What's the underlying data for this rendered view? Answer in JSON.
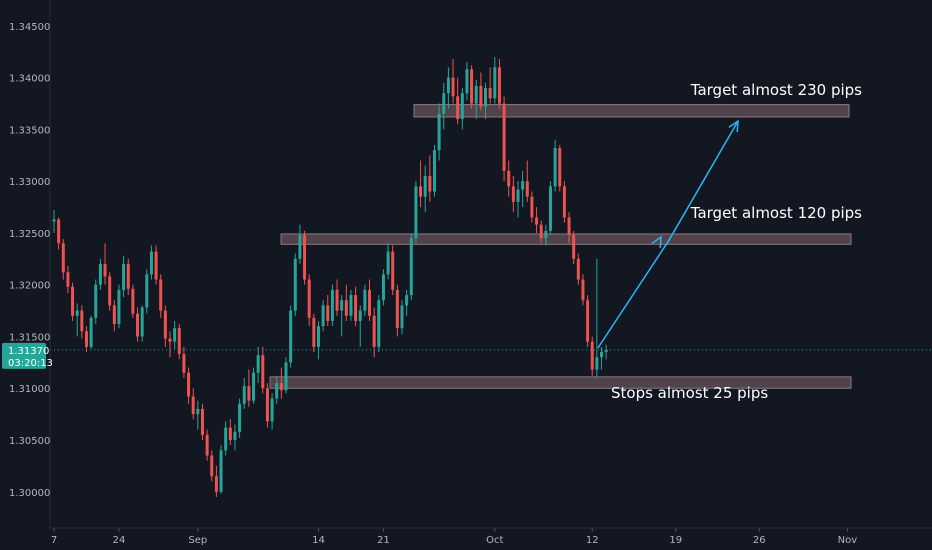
{
  "chart_data": {
    "type": "candlestick",
    "xlabel": "",
    "ylabel": "",
    "ylim": [
      1.2965,
      1.3475
    ],
    "y_ticks": [
      "1.30000",
      "1.30500",
      "1.31000",
      "1.31500",
      "1.32000",
      "1.32500",
      "1.33000",
      "1.33500",
      "1.34000",
      "1.34500"
    ],
    "x_ticks": [
      "7",
      "24",
      "Sep",
      "14",
      "21",
      "Oct",
      "12",
      "19",
      "26",
      "Nov"
    ],
    "current_price": {
      "value": 1.3137,
      "label": "1.31370",
      "countdown": "03:20:13"
    },
    "zones": [
      {
        "name": "resistance-upper",
        "from": 1.3362,
        "to": 1.3374
      },
      {
        "name": "resistance-middle",
        "from": 1.3239,
        "to": 1.3249
      },
      {
        "name": "support-lower",
        "from": 1.31,
        "to": 1.3111
      }
    ],
    "annotations": [
      {
        "text": "Target almost 230 pips"
      },
      {
        "text": "Target almost 120 pips"
      },
      {
        "text": "Stops almost 25 pips"
      }
    ],
    "projection_path": [
      1.3139,
      1.3243,
      1.3358
    ],
    "candles": [
      [
        1.3261,
        1.3272,
        1.325,
        1.3263
      ],
      [
        1.3263,
        1.3265,
        1.3234,
        1.324
      ],
      [
        1.324,
        1.3244,
        1.3205,
        1.3212
      ],
      [
        1.3212,
        1.3218,
        1.3192,
        1.3198
      ],
      [
        1.3198,
        1.3202,
        1.3165,
        1.317
      ],
      [
        1.317,
        1.3182,
        1.315,
        1.3175
      ],
      [
        1.3175,
        1.318,
        1.3148,
        1.3155
      ],
      [
        1.3155,
        1.316,
        1.3135,
        1.314
      ],
      [
        1.314,
        1.317,
        1.3138,
        1.3168
      ],
      [
        1.3168,
        1.3205,
        1.3162,
        1.32
      ],
      [
        1.32,
        1.3225,
        1.3195,
        1.322
      ],
      [
        1.322,
        1.324,
        1.32,
        1.3208
      ],
      [
        1.3208,
        1.3212,
        1.3175,
        1.318
      ],
      [
        1.318,
        1.3185,
        1.3155,
        1.3162
      ],
      [
        1.3162,
        1.32,
        1.3158,
        1.3195
      ],
      [
        1.3195,
        1.3228,
        1.3188,
        1.322
      ],
      [
        1.322,
        1.3225,
        1.319,
        1.3196
      ],
      [
        1.3196,
        1.32,
        1.3168,
        1.3172
      ],
      [
        1.3172,
        1.3178,
        1.3145,
        1.315
      ],
      [
        1.315,
        1.318,
        1.3145,
        1.3178
      ],
      [
        1.3178,
        1.3215,
        1.3172,
        1.321
      ],
      [
        1.321,
        1.3238,
        1.3205,
        1.3232
      ],
      [
        1.3232,
        1.3238,
        1.32,
        1.3205
      ],
      [
        1.3205,
        1.321,
        1.3168,
        1.3175
      ],
      [
        1.3175,
        1.318,
        1.314,
        1.3148
      ],
      [
        1.3148,
        1.3155,
        1.313,
        1.3145
      ],
      [
        1.3145,
        1.3165,
        1.3138,
        1.3158
      ],
      [
        1.3158,
        1.3162,
        1.3128,
        1.3133
      ],
      [
        1.3133,
        1.314,
        1.311,
        1.3115
      ],
      [
        1.3115,
        1.312,
        1.3085,
        1.3092
      ],
      [
        1.3092,
        1.31,
        1.307,
        1.3075
      ],
      [
        1.3075,
        1.3088,
        1.306,
        1.308
      ],
      [
        1.308,
        1.3085,
        1.305,
        1.3055
      ],
      [
        1.3055,
        1.306,
        1.303,
        1.3035
      ],
      [
        1.3035,
        1.304,
        1.301,
        1.3015
      ],
      [
        1.3015,
        1.3025,
        1.2995,
        1.3
      ],
      [
        1.3,
        1.3045,
        1.2998,
        1.304
      ],
      [
        1.304,
        1.3068,
        1.3035,
        1.3062
      ],
      [
        1.3062,
        1.307,
        1.3045,
        1.305
      ],
      [
        1.305,
        1.3065,
        1.304,
        1.3058
      ],
      [
        1.3058,
        1.309,
        1.3052,
        1.3085
      ],
      [
        1.3085,
        1.311,
        1.308,
        1.3102
      ],
      [
        1.3102,
        1.3118,
        1.3082,
        1.3088
      ],
      [
        1.3088,
        1.312,
        1.3085,
        1.3115
      ],
      [
        1.3115,
        1.314,
        1.3105,
        1.3132
      ],
      [
        1.3132,
        1.314,
        1.3095,
        1.31
      ],
      [
        1.31,
        1.3105,
        1.3062,
        1.3068
      ],
      [
        1.3068,
        1.3095,
        1.306,
        1.309
      ],
      [
        1.309,
        1.3112,
        1.3085,
        1.3105
      ],
      [
        1.3105,
        1.312,
        1.309,
        1.3098
      ],
      [
        1.3098,
        1.313,
        1.3095,
        1.3125
      ],
      [
        1.3125,
        1.318,
        1.312,
        1.3175
      ],
      [
        1.3175,
        1.323,
        1.317,
        1.3225
      ],
      [
        1.3225,
        1.3258,
        1.322,
        1.3248
      ],
      [
        1.3248,
        1.3252,
        1.32,
        1.3205
      ],
      [
        1.3205,
        1.321,
        1.316,
        1.3168
      ],
      [
        1.3168,
        1.3172,
        1.3135,
        1.314
      ],
      [
        1.314,
        1.3165,
        1.3128,
        1.316
      ],
      [
        1.316,
        1.3185,
        1.3155,
        1.318
      ],
      [
        1.318,
        1.319,
        1.316,
        1.3165
      ],
      [
        1.3165,
        1.32,
        1.316,
        1.3195
      ],
      [
        1.3195,
        1.3205,
        1.317,
        1.3175
      ],
      [
        1.3175,
        1.319,
        1.315,
        1.3185
      ],
      [
        1.3185,
        1.32,
        1.3165,
        1.317
      ],
      [
        1.317,
        1.3195,
        1.3165,
        1.319
      ],
      [
        1.319,
        1.3198,
        1.316,
        1.3165
      ],
      [
        1.3165,
        1.318,
        1.314,
        1.3175
      ],
      [
        1.3175,
        1.32,
        1.317,
        1.3195
      ],
      [
        1.3195,
        1.3205,
        1.3165,
        1.317
      ],
      [
        1.317,
        1.3178,
        1.313,
        1.314
      ],
      [
        1.314,
        1.319,
        1.3135,
        1.3185
      ],
      [
        1.3185,
        1.3215,
        1.318,
        1.321
      ],
      [
        1.321,
        1.324,
        1.3205,
        1.3232
      ],
      [
        1.3232,
        1.3238,
        1.319,
        1.3195
      ],
      [
        1.3195,
        1.32,
        1.315,
        1.3158
      ],
      [
        1.3158,
        1.3185,
        1.3152,
        1.318
      ],
      [
        1.318,
        1.3195,
        1.317,
        1.319
      ],
      [
        1.319,
        1.325,
        1.3185,
        1.3245
      ],
      [
        1.3245,
        1.33,
        1.324,
        1.3295
      ],
      [
        1.3295,
        1.332,
        1.3275,
        1.3285
      ],
      [
        1.3285,
        1.3315,
        1.327,
        1.3305
      ],
      [
        1.3305,
        1.3325,
        1.328,
        1.329
      ],
      [
        1.329,
        1.3335,
        1.3285,
        1.333
      ],
      [
        1.333,
        1.3375,
        1.332,
        1.3365
      ],
      [
        1.3365,
        1.3395,
        1.335,
        1.3385
      ],
      [
        1.3385,
        1.341,
        1.337,
        1.34
      ],
      [
        1.34,
        1.3418,
        1.3375,
        1.3382
      ],
      [
        1.3382,
        1.34,
        1.3355,
        1.336
      ],
      [
        1.336,
        1.339,
        1.335,
        1.3385
      ],
      [
        1.3385,
        1.3415,
        1.3378,
        1.3408
      ],
      [
        1.3408,
        1.3412,
        1.337,
        1.3375
      ],
      [
        1.3375,
        1.3398,
        1.336,
        1.3392
      ],
      [
        1.3392,
        1.3405,
        1.3368,
        1.3372
      ],
      [
        1.3372,
        1.3395,
        1.336,
        1.339
      ],
      [
        1.339,
        1.341,
        1.3375,
        1.338
      ],
      [
        1.338,
        1.342,
        1.3375,
        1.341
      ],
      [
        1.341,
        1.3418,
        1.337,
        1.3375
      ],
      [
        1.3375,
        1.3382,
        1.33,
        1.331
      ],
      [
        1.331,
        1.332,
        1.3285,
        1.3295
      ],
      [
        1.3295,
        1.3305,
        1.327,
        1.328
      ],
      [
        1.328,
        1.33,
        1.3265,
        1.3292
      ],
      [
        1.3292,
        1.331,
        1.3275,
        1.33
      ],
      [
        1.33,
        1.332,
        1.328,
        1.3285
      ],
      [
        1.3285,
        1.329,
        1.326,
        1.3265
      ],
      [
        1.3265,
        1.3275,
        1.325,
        1.3258
      ],
      [
        1.3258,
        1.3262,
        1.324,
        1.3245
      ],
      [
        1.3245,
        1.3258,
        1.3238,
        1.3252
      ],
      [
        1.3252,
        1.33,
        1.3248,
        1.3295
      ],
      [
        1.3295,
        1.334,
        1.329,
        1.3332
      ],
      [
        1.3332,
        1.3335,
        1.329,
        1.3295
      ],
      [
        1.3295,
        1.33,
        1.326,
        1.3265
      ],
      [
        1.3265,
        1.327,
        1.324,
        1.3248
      ],
      [
        1.3248,
        1.3252,
        1.322,
        1.3225
      ],
      [
        1.3225,
        1.323,
        1.32,
        1.3205
      ],
      [
        1.3205,
        1.321,
        1.318,
        1.3185
      ],
      [
        1.3185,
        1.319,
        1.314,
        1.3145
      ],
      [
        1.3145,
        1.315,
        1.3112,
        1.3118
      ],
      [
        1.3118,
        1.3225,
        1.311,
        1.313
      ],
      [
        1.313,
        1.314,
        1.3118,
        1.3135
      ],
      [
        1.3135,
        1.3142,
        1.3128,
        1.3137
      ]
    ]
  }
}
